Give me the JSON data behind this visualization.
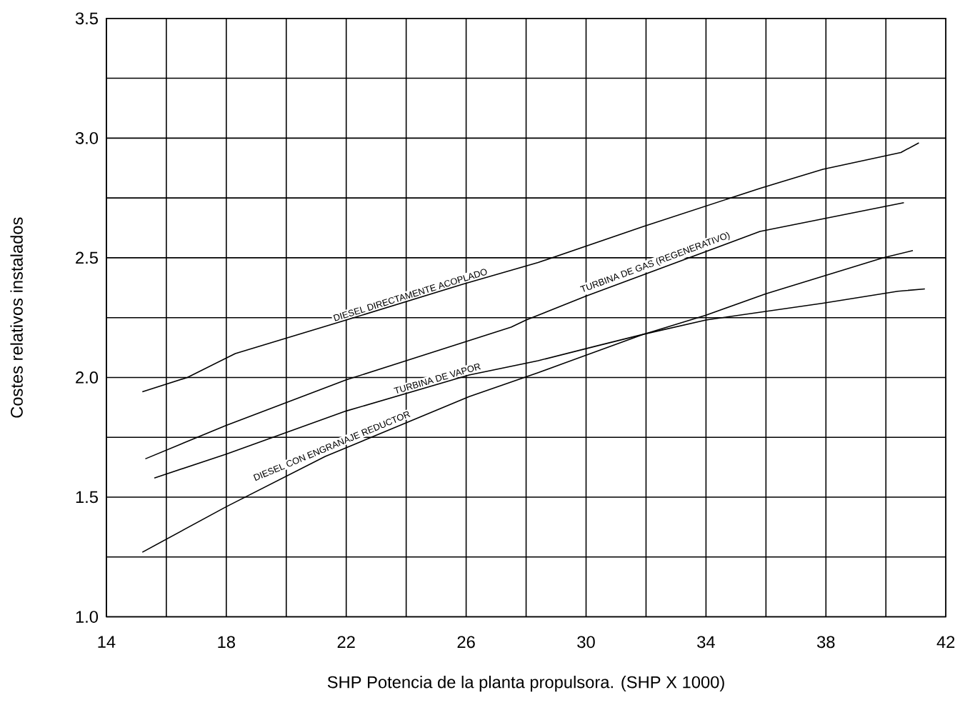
{
  "chart_data": {
    "type": "line",
    "xlabel": "SHP   Potencia de la planta propulsora. (SHP X 1000)",
    "ylabel": "Costes relativos instalados",
    "xlim": [
      14,
      42
    ],
    "ylim": [
      1.0,
      3.5
    ],
    "xticks": [
      14,
      {
        "value": 16,
        "label": null
      },
      18,
      {
        "value": 20,
        "label": null
      },
      22,
      {
        "value": 24,
        "label": null
      },
      26,
      {
        "value": 28,
        "label": null
      },
      30,
      {
        "value": 32,
        "label": null
      },
      34,
      {
        "value": 36,
        "label": null
      },
      38,
      {
        "value": 40,
        "label": null
      },
      42
    ],
    "yticks": [
      {
        "value": 1.0,
        "label": "1.0"
      },
      {
        "value": 1.25,
        "label": null
      },
      {
        "value": 1.5,
        "label": "1.5"
      },
      {
        "value": 1.75,
        "label": null
      },
      {
        "value": 2.0,
        "label": "2.0"
      },
      {
        "value": 2.25,
        "label": null
      },
      {
        "value": 2.5,
        "label": "2.5"
      },
      {
        "value": 2.75,
        "label": null
      },
      {
        "value": 3.0,
        "label": "3.0"
      },
      {
        "value": 3.25,
        "label": null
      },
      {
        "value": 3.5,
        "label": "3.5"
      }
    ],
    "grid": true,
    "marker": "none",
    "line_style": "solid",
    "series": [
      {
        "color": "#000000",
        "x": [
          15.2,
          16.7,
          18.3,
          22.0,
          25.9,
          28.4,
          31.9,
          35.8,
          37.9,
          40.5,
          41.1
        ],
        "values": [
          1.94,
          2.0,
          2.1,
          2.24,
          2.39,
          2.48,
          2.63,
          2.79,
          2.87,
          2.94,
          2.98
        ]
      },
      {
        "color": "#000000",
        "x": [
          15.3,
          18.0,
          22.0,
          27.5,
          28.0,
          30.0,
          35.8,
          40.6
        ],
        "values": [
          1.66,
          1.8,
          1.99,
          2.21,
          2.24,
          2.34,
          2.61,
          2.73
        ]
      },
      {
        "color": "#000000",
        "x": [
          15.6,
          18.0,
          22.0,
          26.1,
          28.4,
          30.3,
          31.9,
          34.0,
          37.9,
          40.4,
          41.3
        ],
        "values": [
          1.58,
          1.68,
          1.86,
          2.01,
          2.07,
          2.13,
          2.18,
          2.24,
          2.31,
          2.36,
          2.37
        ]
      },
      {
        "color": "#000000",
        "x": [
          15.2,
          18.0,
          21.3,
          26.1,
          28.4,
          31.9,
          34.0,
          36.0,
          39.9,
          40.9
        ],
        "values": [
          1.27,
          1.46,
          1.67,
          1.92,
          2.02,
          2.18,
          2.26,
          2.35,
          2.5,
          2.53
        ]
      }
    ],
    "annotations": [
      {
        "text": "DIESEL DIRECTAMENTE ACOPLADO",
        "x": 24.2,
        "y": 2.32
      },
      {
        "text": "TURBINA DE GAS (REGENERATIVO)",
        "x": 32.4,
        "y": 2.45
      },
      {
        "text": "TURBINA DE VAPOR",
        "x": 25.1,
        "y": 1.97
      },
      {
        "text": "DIESEL CON ENGRANAJE REDUCTOR",
        "x": 21.6,
        "y": 1.69
      }
    ]
  }
}
